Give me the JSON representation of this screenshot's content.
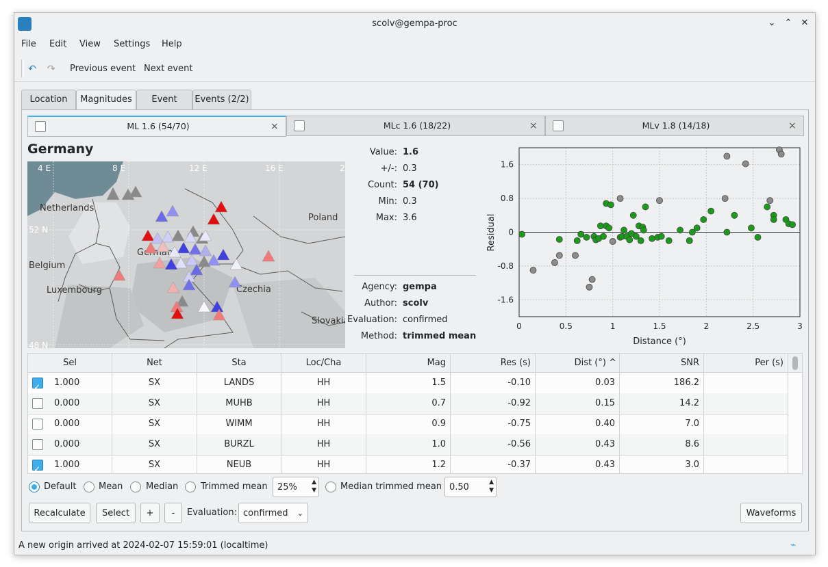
{
  "window": {
    "title": "scolv@gempa-proc",
    "minimize": "⌄",
    "maximize": "⌃",
    "close": "✕"
  },
  "menu": [
    "File",
    "Edit",
    "View",
    "Settings",
    "Help"
  ],
  "toolbar": {
    "prev_label": "Previous event",
    "next_label": "Next event",
    "prev_icon": "back-arrow-icon",
    "next_icon": "forward-arrow-icon"
  },
  "main_tabs": [
    "Location",
    "Magnitudes",
    "Event",
    "Events (2/2)"
  ],
  "magnitude_tabs": [
    {
      "label": "ML 1.6 (54/70)",
      "active": true
    },
    {
      "label": "MLc 1.6 (18/22)",
      "active": false
    },
    {
      "label": "MLv 1.8 (14/18)",
      "active": false
    }
  ],
  "region": "Germany",
  "map": {
    "lon_labels": [
      "4 E",
      "8 E",
      "12 E",
      "16 E",
      "2"
    ],
    "lat_labels": [
      "52 N",
      "48 N"
    ],
    "place_labels": [
      "Netherlands",
      "Poland",
      "Germany",
      "Belgium",
      "Luxembourg",
      "Czechia",
      "Slovakia"
    ]
  },
  "summary": {
    "value_label": "Value:",
    "value": "1.6",
    "pm_label": "+/-:",
    "pm": "0.3",
    "count_label": "Count:",
    "count": "54 (70)",
    "min_label": "Min:",
    "min": "0.3",
    "max_label": "Max:",
    "max": "3.6",
    "agency_label": "Agency:",
    "agency": "gempa",
    "author_label": "Author:",
    "author": "scolv",
    "evaluation_label": "Evaluation:",
    "evaluation": "confirmed",
    "method_label": "Method:",
    "method": "trimmed mean"
  },
  "chart_data": {
    "type": "scatter",
    "xlabel": "Distance (°)",
    "ylabel": "Residual",
    "xlim": [
      0,
      3
    ],
    "ylim": [
      -2.0,
      2.0
    ],
    "xticks": [
      "0",
      "0.5",
      "1",
      "1.5",
      "2",
      "2.5",
      "3"
    ],
    "yticks": [
      "1.6",
      "0.8",
      "0",
      "-0.8",
      "-1.6"
    ],
    "grid": true,
    "series": [
      {
        "color": "#1a9b1a",
        "points": [
          [
            0.03,
            -0.05
          ],
          [
            0.43,
            -0.17
          ],
          [
            0.62,
            -0.2
          ],
          [
            0.66,
            -0.05
          ],
          [
            0.72,
            -0.12
          ],
          [
            0.8,
            -0.1
          ],
          [
            0.82,
            -0.18
          ],
          [
            0.85,
            -0.15
          ],
          [
            0.87,
            0.15
          ],
          [
            0.9,
            -0.1
          ],
          [
            0.93,
            0.15
          ],
          [
            0.93,
            0.68
          ],
          [
            0.96,
            0.1
          ],
          [
            0.98,
            0.65
          ],
          [
            1.08,
            -0.12
          ],
          [
            1.1,
            -0.1
          ],
          [
            1.12,
            0.05
          ],
          [
            1.15,
            -0.1
          ],
          [
            1.18,
            -0.18
          ],
          [
            1.2,
            -0.03
          ],
          [
            1.22,
            0.4
          ],
          [
            1.25,
            -0.1
          ],
          [
            1.28,
            0.15
          ],
          [
            1.3,
            -0.2
          ],
          [
            1.32,
            0.12
          ],
          [
            1.33,
            0.05
          ],
          [
            1.35,
            0.6
          ],
          [
            1.42,
            -0.15
          ],
          [
            1.48,
            -0.12
          ],
          [
            1.52,
            -0.1
          ],
          [
            1.6,
            -0.2
          ],
          [
            1.72,
            0.05
          ],
          [
            1.82,
            -0.2
          ],
          [
            1.85,
            0.0
          ],
          [
            1.9,
            0.1
          ],
          [
            1.97,
            0.3
          ],
          [
            2.05,
            0.5
          ],
          [
            2.22,
            0.0
          ],
          [
            2.3,
            0.4
          ],
          [
            2.48,
            0.1
          ],
          [
            2.55,
            -0.12
          ],
          [
            2.65,
            0.6
          ],
          [
            2.72,
            0.4
          ],
          [
            2.72,
            0.3
          ],
          [
            2.85,
            0.3
          ],
          [
            2.88,
            0.2
          ],
          [
            2.92,
            0.18
          ]
        ]
      },
      {
        "color": "#8c8c8c",
        "points": [
          [
            0.15,
            -0.9
          ],
          [
            0.38,
            -0.72
          ],
          [
            0.43,
            -0.55
          ],
          [
            0.6,
            -0.55
          ],
          [
            0.75,
            -1.3
          ],
          [
            0.78,
            -1.12
          ],
          [
            1.0,
            -0.22
          ],
          [
            1.08,
            0.8
          ],
          [
            1.5,
            0.75
          ],
          [
            2.2,
            0.8
          ],
          [
            2.22,
            1.8
          ],
          [
            2.42,
            1.62
          ],
          [
            2.68,
            0.75
          ],
          [
            2.78,
            1.95
          ],
          [
            2.8,
            1.85
          ]
        ]
      }
    ]
  },
  "table": {
    "columns": [
      "Sel",
      "Net",
      "Sta",
      "Loc/Cha",
      "Mag",
      "Res (s)",
      "Dist (°)",
      "SNR",
      "Per (s)"
    ],
    "rows": [
      {
        "checked": true,
        "sel": "1.000",
        "net": "SX",
        "sta": "LANDS",
        "cha": "HH",
        "mag": "1.5",
        "res": "-0.10",
        "dist": "0.03",
        "snr": "186.2",
        "per": ""
      },
      {
        "checked": false,
        "sel": "0.000",
        "net": "SX",
        "sta": "MUHB",
        "cha": "HH",
        "mag": "0.7",
        "res": "-0.92",
        "dist": "0.15",
        "snr": "14.2",
        "per": ""
      },
      {
        "checked": false,
        "sel": "0.000",
        "net": "SX",
        "sta": "WIMM",
        "cha": "HH",
        "mag": "0.9",
        "res": "-0.75",
        "dist": "0.40",
        "snr": "7.0",
        "per": ""
      },
      {
        "checked": false,
        "sel": "0.000",
        "net": "SX",
        "sta": "BURZL",
        "cha": "HH",
        "mag": "1.0",
        "res": "-0.56",
        "dist": "0.43",
        "snr": "8.6",
        "per": ""
      },
      {
        "checked": true,
        "sel": "1.000",
        "net": "SX",
        "sta": "NEUB",
        "cha": "HH",
        "mag": "1.2",
        "res": "-0.37",
        "dist": "0.43",
        "snr": "3.0",
        "per": ""
      }
    ]
  },
  "method_options": {
    "default": "Default",
    "mean": "Mean",
    "median": "Median",
    "trimmed": "Trimmed mean",
    "trimmed_value": "25%",
    "median_trimmed": "Median trimmed mean",
    "median_trimmed_value": "0.50"
  },
  "buttons": {
    "recalculate": "Recalculate",
    "select": "Select",
    "plus": "+",
    "minus": "-",
    "evaluation_label": "Evaluation:",
    "evaluation_value": "confirmed",
    "waveforms": "Waveforms"
  },
  "status": "A new origin arrived at 2024-02-07 15:59:01 (localtime)"
}
